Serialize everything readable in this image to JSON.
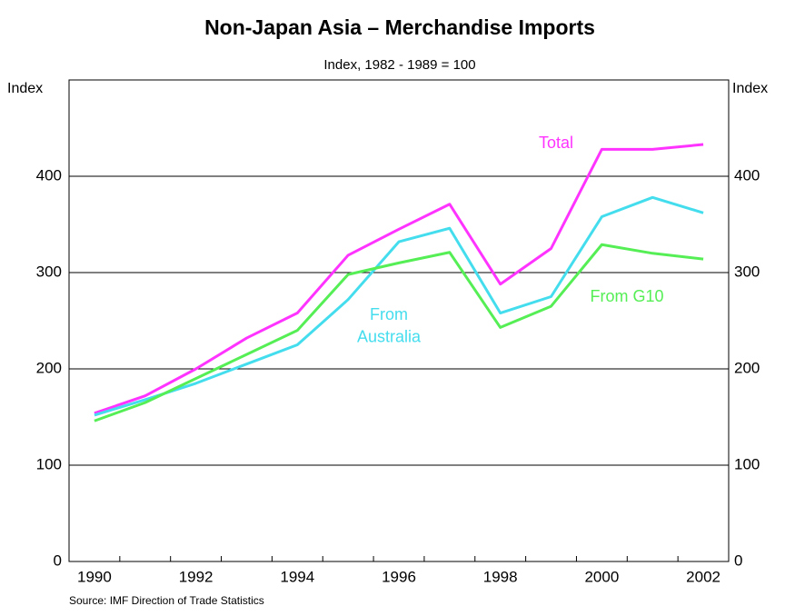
{
  "chart_data": {
    "type": "line",
    "title": "Non-Japan Asia – Merchandise Imports",
    "subtitle": "Index, 1982 - 1989 = 100",
    "y_label": "Index",
    "y2_label": "Index",
    "source": "Source: IMF Direction of Trade Statistics",
    "categories": [
      "1990",
      null,
      "1992",
      null,
      "1994",
      null,
      "1996",
      null,
      "1998",
      null,
      "2000",
      null,
      "2002"
    ],
    "ylim": [
      0,
      500
    ],
    "yticks": [
      0,
      100,
      200,
      300,
      400
    ],
    "y2lim": [
      0,
      500
    ],
    "y2ticks": [
      0,
      100,
      200,
      300,
      400
    ],
    "grid": true,
    "series": [
      {
        "name": "Total",
        "label": "Total",
        "color": "#ff33ff",
        "values": [
          154,
          172,
          200,
          232,
          258,
          318,
          345,
          371,
          288,
          325,
          428,
          428,
          433
        ]
      },
      {
        "name": "From Australia",
        "label": "From\nAustralia",
        "color": "#44ddee",
        "values": [
          152,
          168,
          185,
          205,
          225,
          272,
          332,
          346,
          258,
          275,
          358,
          378,
          362
        ]
      },
      {
        "name": "From G10",
        "label": "From G10",
        "color": "#55ee55",
        "values": [
          146,
          165,
          190,
          215,
          240,
          298,
          310,
          321,
          243,
          265,
          329,
          320,
          314
        ]
      }
    ]
  }
}
